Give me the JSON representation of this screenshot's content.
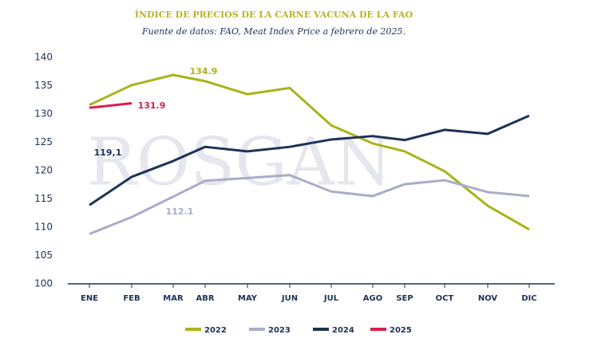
{
  "chart_data": {
    "type": "line",
    "title": "ÍNDICE DE PRECIOS DE LA CARNE VACUNA DE LA FAO",
    "subtitle": "Fuente de datos: FAO, Meat Index Price a febrero de 2025.",
    "watermark": "ROSGAN",
    "categories": [
      "ENE",
      "FEB",
      "MAR",
      "ABR",
      "MAY",
      "JUN",
      "JUL",
      "AGO",
      "SEP",
      "OCT",
      "NOV",
      "DIC"
    ],
    "series": [
      {
        "name": "2022",
        "color": "#a8b41a",
        "values": [
          131.6,
          135.1,
          136.9,
          135.8,
          133.5,
          134.6,
          128.0,
          124.8,
          123.4,
          119.9,
          113.8,
          109.6
        ]
      },
      {
        "name": "2023",
        "color": "#a9adc8",
        "values": [
          108.8,
          111.8,
          115.4,
          118.2,
          118.7,
          119.2,
          116.3,
          115.5,
          117.6,
          118.3,
          116.2,
          115.5
        ]
      },
      {
        "name": "2024",
        "color": "#1c3358",
        "values": [
          113.9,
          118.9,
          121.7,
          124.2,
          123.4,
          124.2,
          125.5,
          126.1,
          125.4,
          127.2,
          126.5,
          129.7
        ]
      },
      {
        "name": "2025",
        "color": "#d81e4a",
        "values": [
          131.1,
          131.9,
          null,
          null,
          null,
          null,
          null,
          null,
          null,
          null,
          null,
          null
        ]
      }
    ],
    "annotations": [
      "134.9",
      "131.9",
      "119,1",
      "112.1"
    ],
    "ylim": [
      100,
      140
    ],
    "yticks": [
      100,
      105,
      110,
      115,
      120,
      125,
      130,
      135,
      140
    ]
  }
}
